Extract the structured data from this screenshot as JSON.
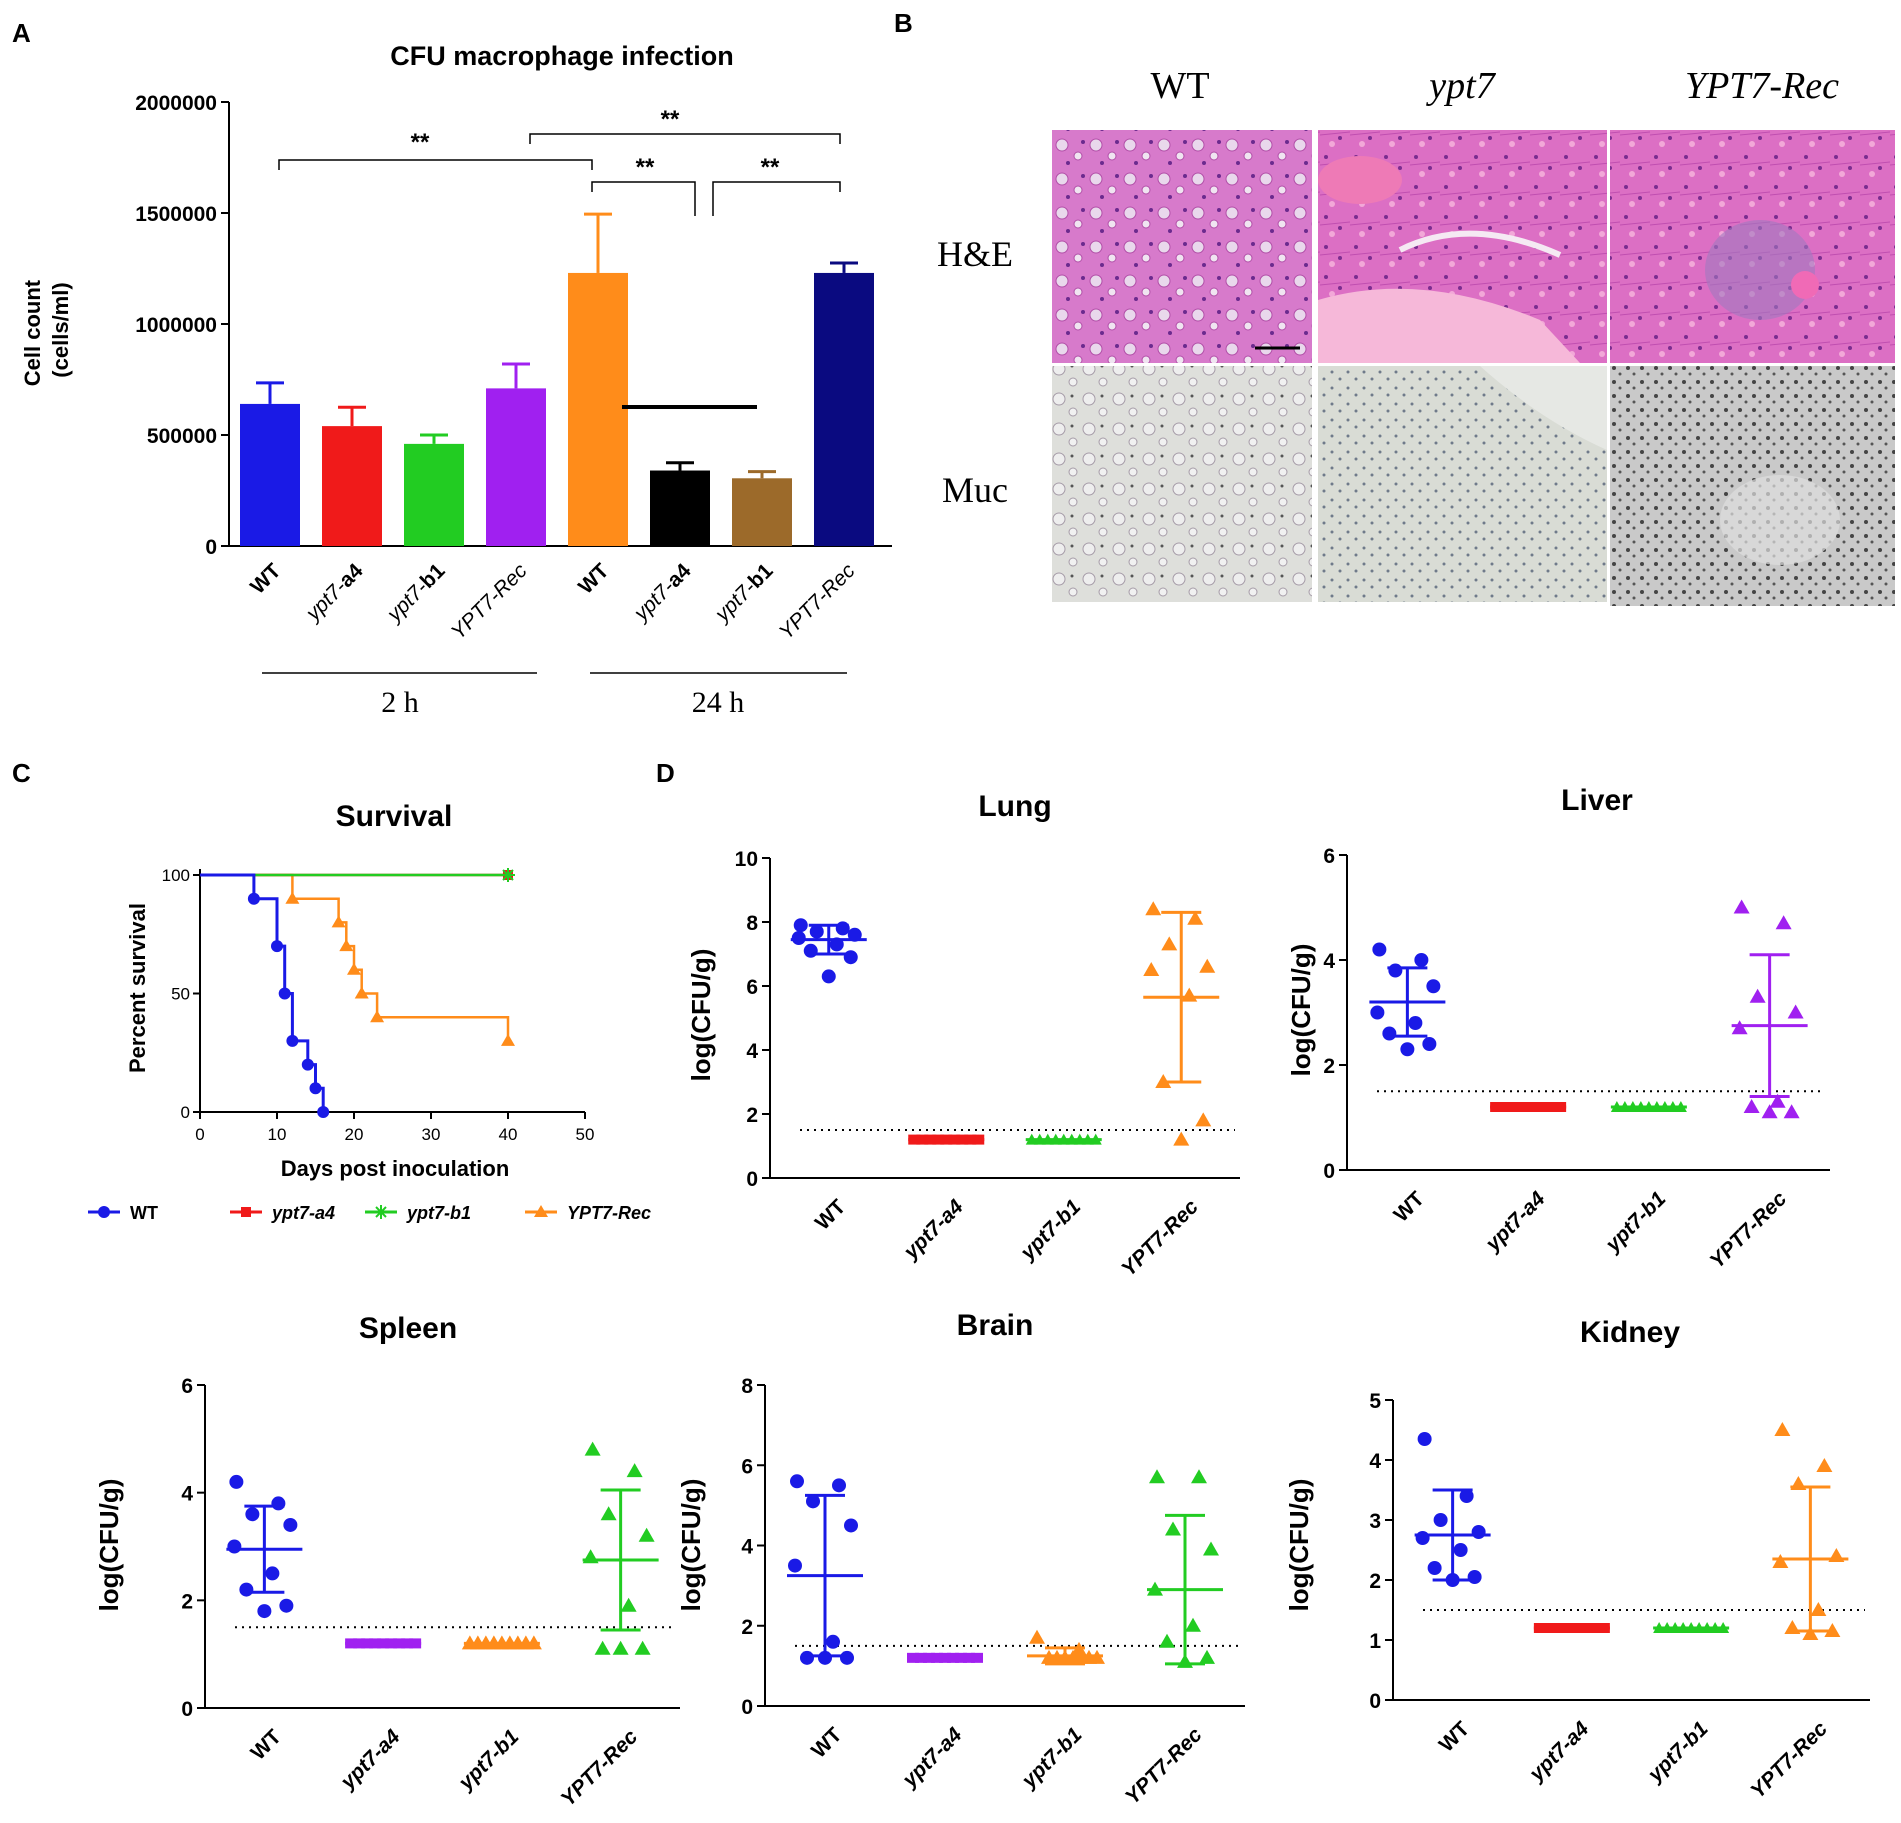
{
  "panel_labels": {
    "A": "A",
    "B": "B",
    "C": "C",
    "D": "D"
  },
  "colors": {
    "wt": "#1a1ae6",
    "red": "#f01a1a",
    "green": "#22cc22",
    "purple": "#a020f0",
    "orange": "#ff8c1a",
    "black": "#000000",
    "brown": "#9c6a2a",
    "navy": "#0a0a80",
    "he": "#d46fc8",
    "muc": "#dcdcd8"
  },
  "chart_data": [
    {
      "id": "A",
      "type": "bar",
      "title": "CFU macrophage infection",
      "ylabel": "Cell count (cells/ml)",
      "ylim": [
        0,
        2000000
      ],
      "yticks": [
        "0",
        "500000",
        "1000000",
        "1500000",
        "2000000"
      ],
      "categories": [
        "WT",
        "ypt7-a4",
        "ypt7-b1",
        "YPT7-Rec",
        "WT",
        "ypt7-a4",
        "ypt7-b1",
        "YPT7-Rec"
      ],
      "values": [
        640000,
        540000,
        460000,
        710000,
        1230000,
        340000,
        305000,
        1230000
      ],
      "errors": [
        95000,
        85000,
        40000,
        110000,
        265000,
        35000,
        30000,
        45000
      ],
      "groups": [
        {
          "label": "2 h"
        },
        {
          "label": "24 h"
        }
      ],
      "significance": [
        "**",
        "**",
        "**",
        "**"
      ]
    },
    {
      "id": "C",
      "type": "line",
      "title": "Survival",
      "xlabel": "Days post inoculation",
      "ylabel": "Percent survival",
      "xlim": [
        0,
        50
      ],
      "ylim": [
        0,
        100
      ],
      "xticks": [
        "0",
        "10",
        "20",
        "30",
        "40",
        "50"
      ],
      "yticks": [
        "0",
        "50",
        "100"
      ],
      "series": [
        {
          "name": "WT",
          "x": [
            0,
            7,
            10,
            11,
            12,
            14,
            15,
            16
          ],
          "y": [
            100,
            90,
            70,
            50,
            30,
            20,
            10,
            0
          ]
        },
        {
          "name": "ypt7-a4",
          "x": [
            0,
            40
          ],
          "y": [
            100,
            100
          ]
        },
        {
          "name": "ypt7-b1",
          "x": [
            0,
            40
          ],
          "y": [
            100,
            100
          ]
        },
        {
          "name": "YPT7-Rec",
          "x": [
            0,
            12,
            18,
            19,
            20,
            21,
            23,
            40
          ],
          "y": [
            100,
            90,
            80,
            70,
            60,
            50,
            40,
            30
          ]
        }
      ]
    },
    {
      "id": "D-lung",
      "type": "scatter",
      "title": "Lung",
      "ylabel": "log(CFU/g)",
      "ylim": [
        0,
        10
      ],
      "yticks": [
        "0",
        "2",
        "4",
        "6",
        "8",
        "10"
      ],
      "threshold": 1.5,
      "categories": [
        "WT",
        "ypt7-a4",
        "ypt7-b1",
        "YPT7-Rec"
      ],
      "series": [
        {
          "name": "WT",
          "values": [
            7.9,
            7.8,
            7.7,
            7.6,
            7.5,
            7.3,
            7.1,
            6.9,
            6.3
          ],
          "mean": 7.45,
          "sd": 0.45
        },
        {
          "name": "ypt7-a4",
          "values": [
            1.2,
            1.2,
            1.2,
            1.2,
            1.2,
            1.2,
            1.2,
            1.2,
            1.2
          ],
          "mean": 1.2,
          "sd": 0
        },
        {
          "name": "ypt7-b1",
          "values": [
            1.2,
            1.2,
            1.2,
            1.2,
            1.2,
            1.2,
            1.2,
            1.2,
            1.2
          ],
          "mean": 1.2,
          "sd": 0
        },
        {
          "name": "YPT7-Rec",
          "values": [
            8.4,
            8.1,
            7.3,
            6.6,
            6.5,
            5.7,
            3.0,
            1.8,
            1.2
          ],
          "mean": 5.65,
          "sd": 2.65
        }
      ]
    },
    {
      "id": "D-liver",
      "type": "scatter",
      "title": "Liver",
      "ylabel": "log(CFU/g)",
      "ylim": [
        0,
        6
      ],
      "yticks": [
        "0",
        "2",
        "4",
        "6"
      ],
      "threshold": 1.5,
      "categories": [
        "WT",
        "ypt7-a4",
        "ypt7-b1",
        "YPT7-Rec"
      ],
      "series": [
        {
          "name": "WT",
          "values": [
            4.2,
            4.0,
            3.8,
            3.5,
            3.0,
            2.8,
            2.6,
            2.4,
            2.3
          ],
          "mean": 3.2,
          "sd": 0.65
        },
        {
          "name": "ypt7-a4",
          "values": [
            1.2,
            1.2,
            1.2,
            1.2,
            1.2,
            1.2,
            1.2,
            1.2,
            1.2
          ],
          "mean": 1.2,
          "sd": 0
        },
        {
          "name": "ypt7-b1",
          "values": [
            1.2,
            1.2,
            1.2,
            1.2,
            1.2,
            1.2,
            1.2,
            1.2,
            1.2
          ],
          "mean": 1.2,
          "sd": 0
        },
        {
          "name": "YPT7-Rec",
          "values": [
            5.0,
            4.7,
            3.3,
            3.0,
            2.7,
            1.3,
            1.2,
            1.1,
            1.1
          ],
          "mean": 2.75,
          "sd": 1.35
        }
      ]
    },
    {
      "id": "D-spleen",
      "type": "scatter",
      "title": "Spleen",
      "ylabel": "log(CFU/g)",
      "ylim": [
        0,
        6
      ],
      "yticks": [
        "0",
        "2",
        "4",
        "6"
      ],
      "threshold": 1.5,
      "categories": [
        "WT",
        "ypt7-a4",
        "ypt7-b1",
        "YPT7-Rec"
      ],
      "series": [
        {
          "name": "WT",
          "values": [
            4.2,
            3.8,
            3.6,
            3.4,
            3.0,
            2.5,
            2.2,
            1.9,
            1.8
          ],
          "mean": 2.95,
          "sd": 0.8
        },
        {
          "name": "ypt7-a4",
          "values": [
            1.2,
            1.2,
            1.2,
            1.2,
            1.2,
            1.2,
            1.2,
            1.2,
            1.2
          ],
          "mean": 1.2,
          "sd": 0
        },
        {
          "name": "ypt7-b1",
          "values": [
            1.2,
            1.2,
            1.2,
            1.2,
            1.2,
            1.2,
            1.2,
            1.2,
            1.2
          ],
          "mean": 1.2,
          "sd": 0
        },
        {
          "name": "YPT7-Rec",
          "values": [
            4.8,
            4.4,
            3.6,
            3.2,
            2.8,
            1.9,
            1.1,
            1.1,
            1.1
          ],
          "mean": 2.75,
          "sd": 1.3
        }
      ]
    },
    {
      "id": "D-brain",
      "type": "scatter",
      "title": "Brain",
      "ylabel": "log(CFU/g)",
      "ylim": [
        0,
        8
      ],
      "yticks": [
        "0",
        "2",
        "4",
        "6",
        "8"
      ],
      "threshold": 1.5,
      "categories": [
        "WT",
        "ypt7-a4",
        "ypt7-b1",
        "YPT7-Rec"
      ],
      "series": [
        {
          "name": "WT",
          "values": [
            5.6,
            5.5,
            5.1,
            4.5,
            3.5,
            1.6,
            1.2,
            1.2,
            1.2
          ],
          "mean": 3.25,
          "sd": 2.0
        },
        {
          "name": "ypt7-a4",
          "values": [
            1.2,
            1.2,
            1.2,
            1.2,
            1.2,
            1.2,
            1.2,
            1.2,
            1.2
          ],
          "mean": 1.2,
          "sd": 0
        },
        {
          "name": "ypt7-b1",
          "values": [
            1.7,
            1.4,
            1.2,
            1.2,
            1.2,
            1.2,
            1.2,
            1.2,
            1.2
          ],
          "mean": 1.25,
          "sd": 0.2
        },
        {
          "name": "YPT7-Rec",
          "values": [
            5.7,
            5.7,
            4.4,
            3.9,
            2.9,
            2.0,
            1.6,
            1.2,
            1.1
          ],
          "mean": 2.9,
          "sd": 1.85
        }
      ]
    },
    {
      "id": "D-kidney",
      "type": "scatter",
      "title": "Kidney",
      "ylabel": "log(CFU/g)",
      "ylim": [
        0,
        5
      ],
      "yticks": [
        "0",
        "1",
        "2",
        "3",
        "4",
        "5"
      ],
      "threshold": 1.5,
      "categories": [
        "WT",
        "ypt7-a4",
        "ypt7-b1",
        "YPT7-Rec"
      ],
      "series": [
        {
          "name": "WT",
          "values": [
            4.35,
            3.4,
            3.0,
            2.8,
            2.7,
            2.5,
            2.2,
            2.05,
            2.0
          ],
          "mean": 2.75,
          "sd": 0.75
        },
        {
          "name": "ypt7-a4",
          "values": [
            1.2,
            1.2,
            1.2,
            1.2,
            1.2,
            1.2,
            1.2,
            1.2,
            1.2
          ],
          "mean": 1.2,
          "sd": 0
        },
        {
          "name": "ypt7-b1",
          "values": [
            1.2,
            1.2,
            1.2,
            1.2,
            1.2,
            1.2,
            1.2,
            1.2,
            1.2
          ],
          "mean": 1.2,
          "sd": 0
        },
        {
          "name": "YPT7-Rec",
          "values": [
            4.5,
            3.9,
            3.6,
            2.4,
            2.3,
            1.5,
            1.2,
            1.15,
            1.1
          ],
          "mean": 2.35,
          "sd": 1.2
        }
      ]
    }
  ],
  "histology": {
    "columns": [
      "WT",
      "ypt7",
      "YPT7-Rec"
    ],
    "rows": [
      "H&E",
      "Muc"
    ]
  }
}
